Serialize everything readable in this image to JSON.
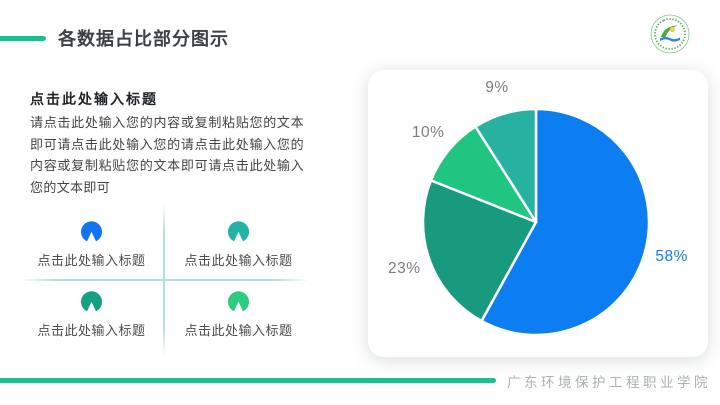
{
  "slide": {
    "title": "各数据占比部分图示",
    "footer_school": "广东环境保护工程职业学院"
  },
  "intro": {
    "heading": "点击此处输入标题",
    "body": "请点击此处输入您的内容或复制粘贴您的文本即可请点击此处输入您的请点击此处输入您的内容或复制粘贴您的文本即可请点击此处输入您的文本即可"
  },
  "grid": {
    "items": [
      {
        "label": "点击此处输入标题",
        "color": "#1374f2"
      },
      {
        "label": "点击此处输入标题",
        "color": "#21b3a3"
      },
      {
        "label": "点击此处输入标题",
        "color": "#14a083"
      },
      {
        "label": "点击此处输入标题",
        "color": "#2ecc81"
      }
    ]
  },
  "chart_data": {
    "type": "pie",
    "title": "",
    "unit": "percent",
    "start_angle_deg": 0,
    "direction": "clockwise",
    "legend": "none",
    "labels_position": "outside",
    "slices": [
      {
        "label": "58%",
        "value": 58,
        "color": "#0d7ef2",
        "label_color": "#0d7ef2"
      },
      {
        "label": "23%",
        "value": 23,
        "color": "#189a7e",
        "label_color": "#7b7f82"
      },
      {
        "label": "10%",
        "value": 10,
        "color": "#1fc581",
        "label_color": "#7b7f82"
      },
      {
        "label": "9%",
        "value": 9,
        "color": "#26b1a1",
        "label_color": "#7b7f82"
      }
    ]
  },
  "theme": {
    "accent_green": "#13c28f",
    "divider_teal": "#aee3db",
    "title_color": "#3d4145",
    "body_text": "#404447",
    "grid_label": "#4c4c4c",
    "footer_gray": "#aab0b3"
  }
}
